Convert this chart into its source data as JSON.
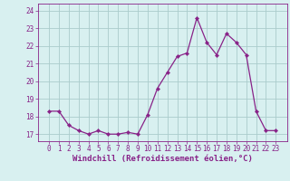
{
  "x": [
    0,
    1,
    2,
    3,
    4,
    5,
    6,
    7,
    8,
    9,
    10,
    11,
    12,
    13,
    14,
    15,
    16,
    17,
    18,
    19,
    20,
    21,
    22,
    23
  ],
  "y": [
    18.3,
    18.3,
    17.5,
    17.2,
    17.0,
    17.2,
    17.0,
    17.0,
    17.1,
    17.0,
    18.1,
    19.6,
    20.5,
    21.4,
    21.6,
    23.6,
    22.2,
    21.5,
    22.7,
    22.2,
    21.5,
    18.3,
    17.2,
    17.2
  ],
  "line_color": "#882288",
  "marker": "D",
  "marker_size": 2.2,
  "bg_color": "#d8f0f0",
  "grid_color": "#aacccc",
  "xlabel": "Windchill (Refroidissement éolien,°C)",
  "xlabel_fontsize": 6.5,
  "ylim": [
    16.6,
    24.4
  ],
  "yticks": [
    17,
    18,
    19,
    20,
    21,
    22,
    23,
    24
  ],
  "xticks": [
    0,
    1,
    2,
    3,
    4,
    5,
    6,
    7,
    8,
    9,
    10,
    11,
    12,
    13,
    14,
    15,
    16,
    17,
    18,
    19,
    20,
    21,
    22,
    23
  ],
  "tick_fontsize": 5.5,
  "tick_color": "#882288",
  "spine_color": "#882288"
}
